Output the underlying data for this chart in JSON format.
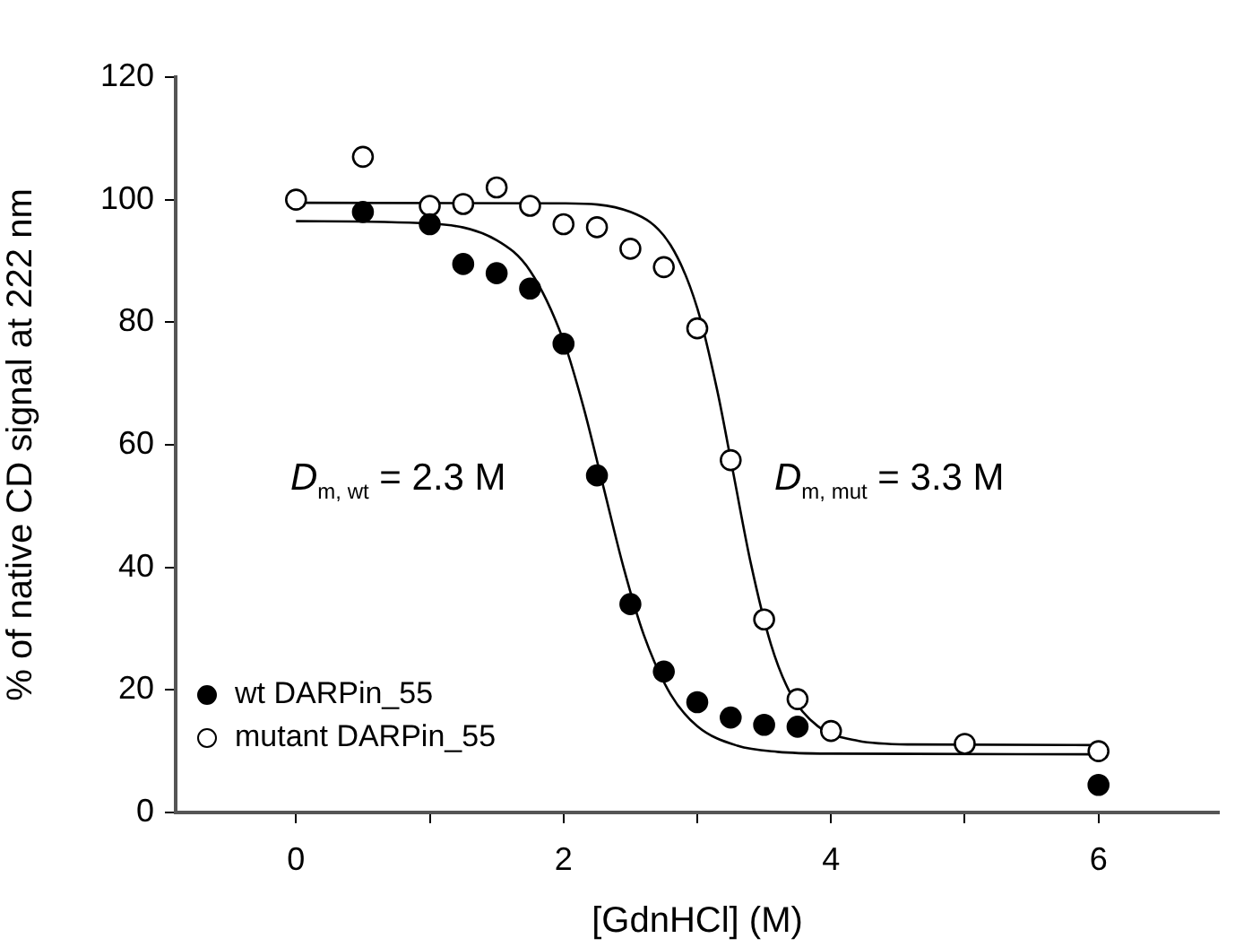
{
  "chart_data": {
    "type": "scatter",
    "xlabel": "[GdnHCl] (M)",
    "ylabel": "% of native CD signal at 222 nm",
    "xlim": [
      -0.9,
      6.9
    ],
    "xticks": [
      0,
      {
        "value": 1,
        "label": null
      },
      2,
      {
        "value": 3,
        "label": null
      },
      4,
      {
        "value": 5,
        "label": null
      },
      6
    ],
    "ylim": [
      0,
      120
    ],
    "yticks": [
      0,
      20,
      40,
      60,
      80,
      100,
      120
    ],
    "grid": false,
    "legend": "bottom left",
    "marker": "circle",
    "series": [
      {
        "name": "wt DARPin_55",
        "color": "#000000",
        "x": [
          0.5,
          1,
          1.25,
          1.5,
          1.75,
          2,
          2.25,
          2.5,
          2.75,
          3,
          3.25,
          3.5,
          3.75,
          6
        ],
        "values": [
          98,
          96,
          89.5,
          88,
          85.5,
          76.5,
          55,
          34,
          23,
          18,
          15.5,
          14.3,
          14,
          4.5
        ]
      },
      {
        "name": "mutant DARPin_55",
        "color": "#ffffff",
        "x": [
          0,
          0.5,
          1,
          1.25,
          1.5,
          1.75,
          2,
          2.25,
          2.5,
          2.75,
          3,
          3.25,
          3.5,
          3.75,
          4,
          5,
          6
        ],
        "values": [
          100,
          107,
          99,
          99.3,
          102,
          99,
          96,
          95.5,
          92,
          89,
          79,
          57.5,
          31.5,
          18.5,
          13.3,
          11.2,
          10
        ]
      },
      {
        "type": "line",
        "color": "#000000",
        "marker": "none",
        "x": [
          0,
          1,
          1.5,
          1.75,
          2,
          2.15,
          2.3,
          2.45,
          2.6,
          2.8,
          3,
          3.3,
          3.6,
          4,
          6
        ],
        "values": [
          96.5,
          96.1,
          93.4,
          88.4,
          77,
          66.1,
          53,
          39.9,
          29,
          19.3,
          14.1,
          10.9,
          9.9,
          9.6,
          9.5
        ]
      },
      {
        "type": "line",
        "color": "#000000",
        "marker": "none",
        "x": [
          0,
          2,
          2.5,
          2.8,
          3,
          3.15,
          3.27,
          3.4,
          3.55,
          3.7,
          3.9,
          4.2,
          4.6,
          6
        ],
        "values": [
          99.5,
          99.4,
          98,
          92.6,
          82.3,
          68.8,
          55.3,
          40.7,
          27.5,
          19.3,
          14.1,
          11.7,
          11.1,
          11
        ]
      }
    ],
    "annotations": [
      "D$_{m, wt}$ = 2.3 M",
      "D$_{m, mut}$ = 3.3 M"
    ]
  }
}
